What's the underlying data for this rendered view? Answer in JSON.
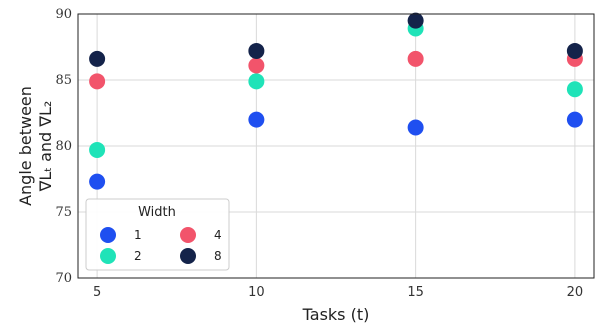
{
  "chart_data": {
    "type": "scatter",
    "xlabel": "Tasks (t)",
    "ylabel_line1": "Angle between",
    "ylabel_line2": "∇Lₜ and ∇L₂",
    "xticks": [
      "5",
      "10",
      "15",
      "20"
    ],
    "yticks": [
      "70",
      "75",
      "80",
      "85",
      "90"
    ],
    "xlim": [
      4.4,
      20.6
    ],
    "ylim": [
      70,
      90
    ],
    "grid": true,
    "legend": {
      "title": "Width",
      "placement": "lower-left"
    },
    "x": [
      5,
      10,
      15,
      20
    ],
    "series": [
      {
        "name": "1",
        "color": "#1f4ff0",
        "values": [
          77.3,
          82.0,
          81.4,
          82.0
        ]
      },
      {
        "name": "2",
        "color": "#1fe3b8",
        "values": [
          79.7,
          84.9,
          88.9,
          84.3
        ]
      },
      {
        "name": "4",
        "color": "#f2546b",
        "values": [
          84.9,
          86.1,
          86.6,
          86.6
        ]
      },
      {
        "name": "8",
        "color": "#14234a",
        "values": [
          86.6,
          87.2,
          89.5,
          87.2
        ]
      }
    ]
  }
}
